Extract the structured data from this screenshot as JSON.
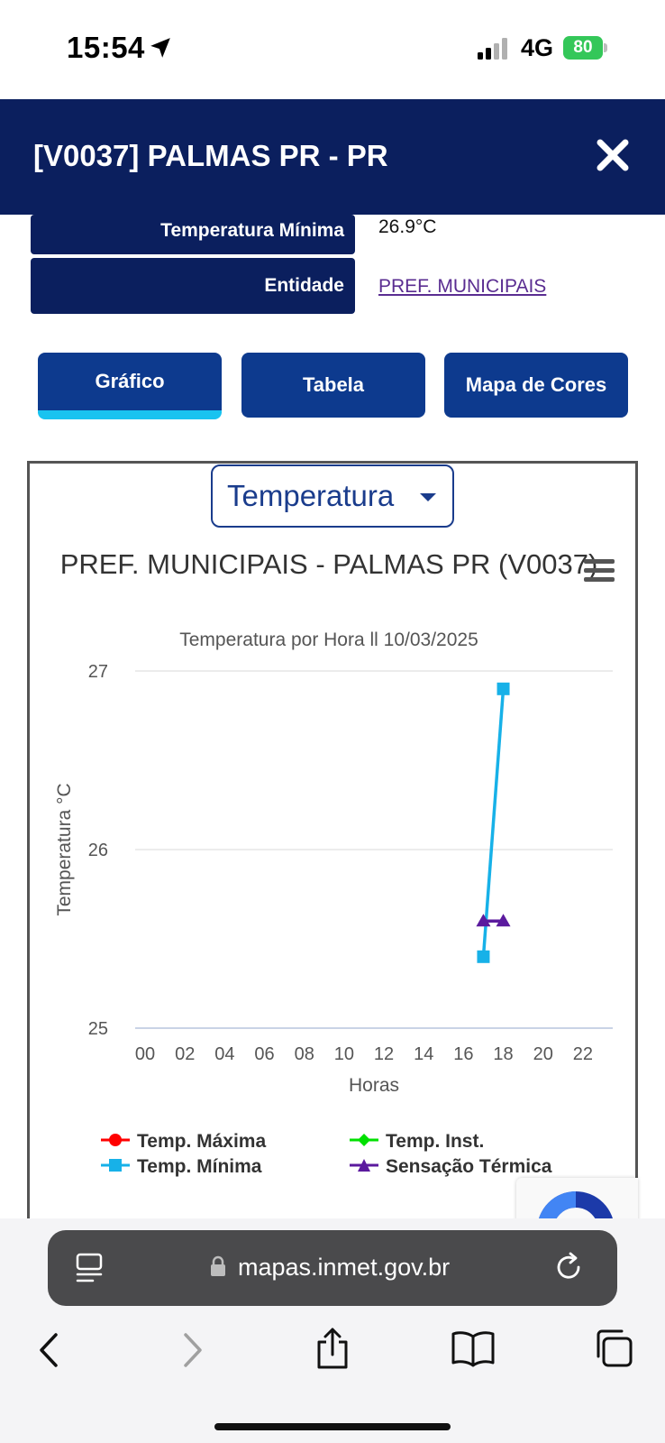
{
  "status_bar": {
    "time": "15:54",
    "network": "4G",
    "battery": "80"
  },
  "header": {
    "title": "[V0037] PALMAS PR - PR"
  },
  "info": {
    "rows": [
      {
        "label": "Temperatura Mínima",
        "value": "26.9°C"
      },
      {
        "label": "Entidade",
        "value": "PREF. MUNICIPAIS"
      }
    ]
  },
  "tabs": [
    {
      "label": "Gráfico",
      "active": true
    },
    {
      "label": "Tabela",
      "active": false
    },
    {
      "label": "Mapa de Cores",
      "active": false
    }
  ],
  "variable_select": {
    "value": "Temperatura"
  },
  "browser": {
    "url": "mapas.inmet.gov.br"
  },
  "chart_data": {
    "type": "line",
    "title": "PREF. MUNICIPAIS - PALMAS PR (V0037)",
    "subtitle": "Temperatura por Hora ll 10/03/2025",
    "xlabel": "Horas",
    "ylabel": "Temperatura °C",
    "xlim": [
      -0.5,
      23.5
    ],
    "ylim": [
      25,
      27
    ],
    "x_ticks": [
      "00",
      "02",
      "04",
      "06",
      "08",
      "10",
      "12",
      "14",
      "16",
      "18",
      "20",
      "22"
    ],
    "y_ticks": [
      25,
      26,
      27
    ],
    "grid": true,
    "legend_position": "bottom",
    "series": [
      {
        "name": "Temp. Máxima",
        "color": "#ff0000",
        "marker": "circle",
        "points": []
      },
      {
        "name": "Temp. Inst.",
        "color": "#00e000",
        "marker": "diamond",
        "points": []
      },
      {
        "name": "Temp. Mínima",
        "color": "#17b1e8",
        "marker": "square",
        "points": [
          {
            "x": 17,
            "y": 25.4
          },
          {
            "x": 18,
            "y": 26.9
          }
        ]
      },
      {
        "name": "Sensação Térmica",
        "color": "#5b1a9e",
        "marker": "triangle",
        "points": [
          {
            "x": 17,
            "y": 25.6
          },
          {
            "x": 18,
            "y": 25.6
          }
        ]
      }
    ]
  }
}
